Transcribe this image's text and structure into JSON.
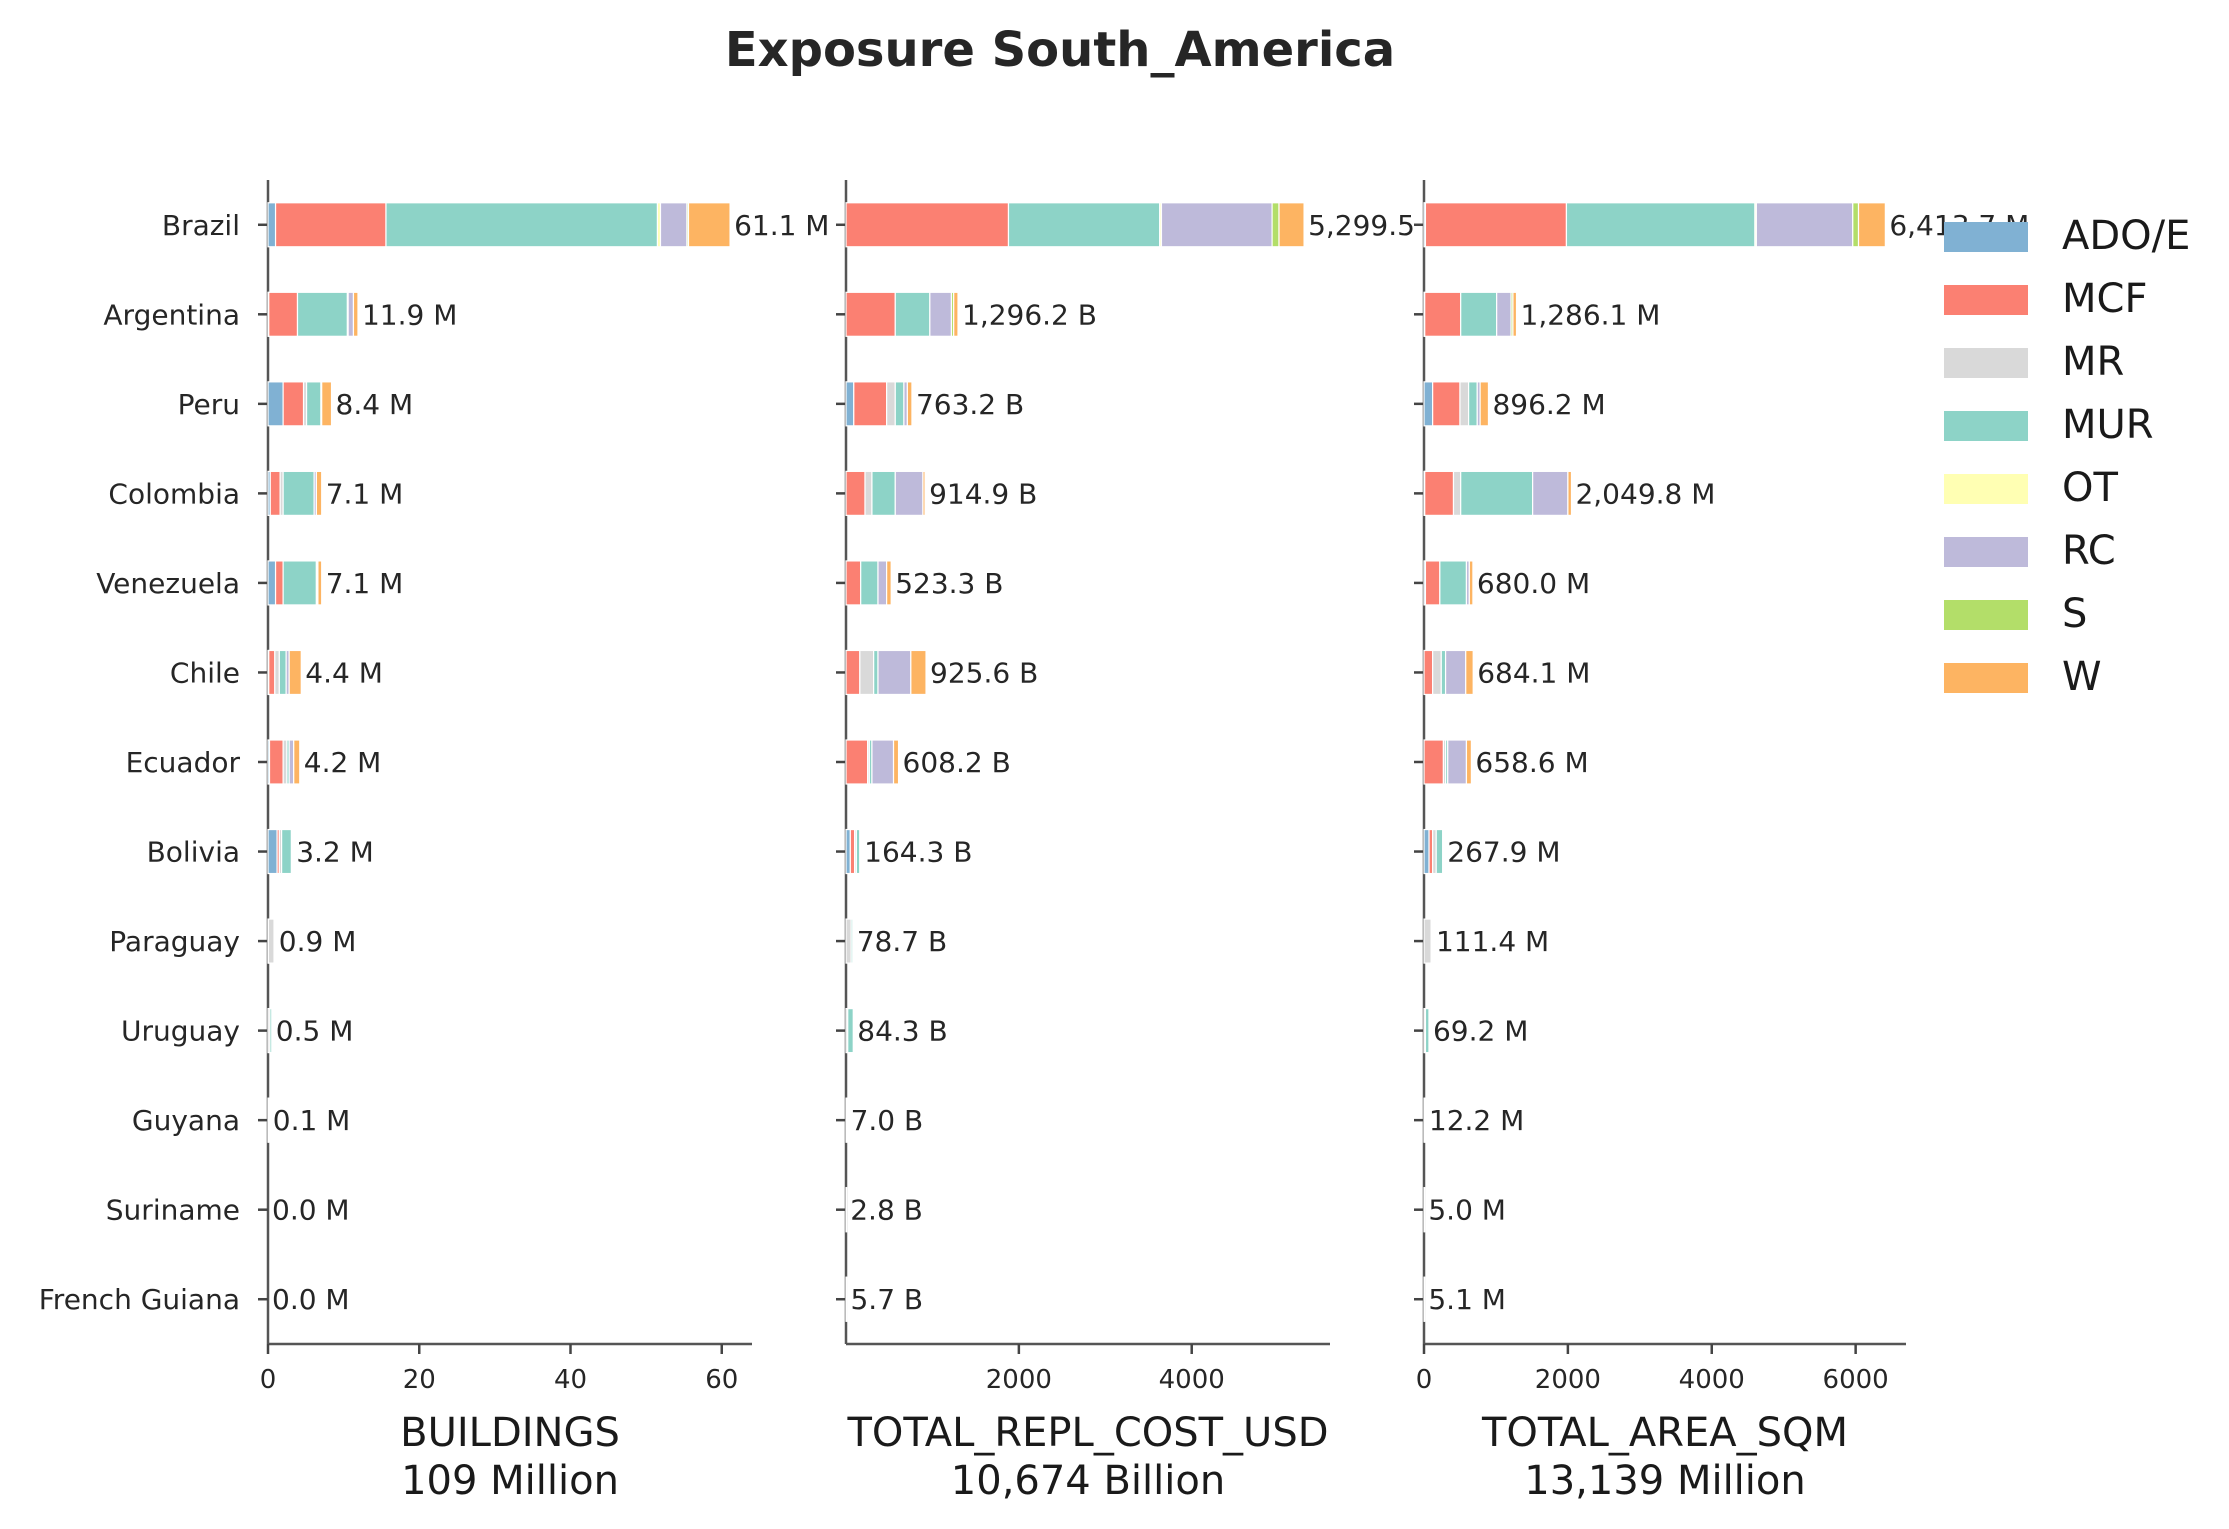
{
  "chart_data": {
    "type": "bar",
    "orientation": "horizontal",
    "stacked": true,
    "title": "Exposure South_America",
    "categories": [
      "Brazil",
      "Argentina",
      "Peru",
      "Colombia",
      "Venezuela",
      "Chile",
      "Ecuador",
      "Bolivia",
      "Paraguay",
      "Uruguay",
      "Guyana",
      "Suriname",
      "French Guiana"
    ],
    "legend": {
      "placement": "right",
      "entries": [
        {
          "name": "ADO/E",
          "color": "#80b1d3"
        },
        {
          "name": "MCF",
          "color": "#fb8072"
        },
        {
          "name": "MR",
          "color": "#d9d9d9"
        },
        {
          "name": "MUR",
          "color": "#8dd3c7"
        },
        {
          "name": "OT",
          "color": "#ffffb3"
        },
        {
          "name": "RC",
          "color": "#bebada"
        },
        {
          "name": "S",
          "color": "#b3de69"
        },
        {
          "name": "W",
          "color": "#fdb462"
        }
      ]
    },
    "grid": false,
    "panels": [
      {
        "xlabel": "BUILDINGS",
        "xsublabel": "109 Million",
        "xlim": [
          0,
          64
        ],
        "xticks": [
          0,
          20,
          40,
          60
        ],
        "totals_text": [
          "61.1 M",
          "11.9 M",
          "8.4 M",
          "7.1 M",
          "7.1 M",
          "4.4 M",
          "4.2 M",
          "3.2 M",
          "0.9 M",
          "0.5 M",
          "0.1 M",
          "0.0 M",
          "0.0 M"
        ],
        "series": [
          {
            "name": "ADO/E",
            "values": [
              1.0,
              0.1,
              2.0,
              0.3,
              1.0,
              0.1,
              0.2,
              1.2,
              0.05,
              0.0,
              0.0,
              0.0,
              0.0
            ]
          },
          {
            "name": "MCF",
            "values": [
              14.6,
              3.8,
              2.7,
              1.3,
              1.0,
              0.8,
              1.8,
              0.3,
              0.0,
              0.0,
              0.0,
              0.0,
              0.0
            ]
          },
          {
            "name": "MR",
            "values": [
              0.0,
              0.0,
              0.4,
              0.4,
              0.0,
              0.6,
              0.5,
              0.3,
              0.75,
              0.25,
              0.05,
              0.0,
              0.0
            ]
          },
          {
            "name": "MUR",
            "values": [
              35.9,
              6.6,
              1.9,
              4.1,
              4.4,
              0.9,
              0.3,
              1.3,
              0.1,
              0.25,
              0.05,
              0.0,
              0.0
            ]
          },
          {
            "name": "OT",
            "values": [
              0.4,
              0.1,
              0.0,
              0.0,
              0.1,
              0.0,
              0.0,
              0.0,
              0.0,
              0.0,
              0.0,
              0.0,
              0.0
            ]
          },
          {
            "name": "RC",
            "values": [
              3.5,
              0.7,
              0.1,
              0.3,
              0.1,
              0.4,
              0.6,
              0.1,
              0.0,
              0.0,
              0.0,
              0.0,
              0.0
            ]
          },
          {
            "name": "S",
            "values": [
              0.2,
              0.0,
              0.0,
              0.0,
              0.0,
              0.0,
              0.0,
              0.0,
              0.0,
              0.0,
              0.0,
              0.0,
              0.0
            ]
          },
          {
            "name": "W",
            "values": [
              5.5,
              0.6,
              1.3,
              0.7,
              0.5,
              1.6,
              0.8,
              0.0,
              0.0,
              0.0,
              0.0,
              0.0,
              0.0
            ]
          }
        ]
      },
      {
        "xlabel": "TOTAL_REPL_COST_USD",
        "xsublabel": "10,674 Billion",
        "xlim": [
          0,
          5600
        ],
        "xticks": [
          2000,
          4000
        ],
        "totals_text": [
          "5,299.5",
          "1,296.2 B",
          "763.2 B",
          "914.9 B",
          "523.3 B",
          "925.6 B",
          "608.2 B",
          "164.3 B",
          "78.7 B",
          "84.3 B",
          "7.0 B",
          "2.8 B",
          "5.7 B"
        ],
        "series": [
          {
            "name": "ADO/E",
            "values": [
              0,
              0,
              90,
              0,
              0,
              0,
              0,
              50,
              0,
              0,
              0,
              0,
              0
            ]
          },
          {
            "name": "MCF",
            "values": [
              1880,
              570,
              380,
              220,
              170,
              160,
              250,
              50,
              0,
              0,
              0,
              0,
              0
            ]
          },
          {
            "name": "MR",
            "values": [
              0,
              0,
              100,
              80,
              0,
              160,
              20,
              20,
              60,
              20,
              5,
              2,
              4
            ]
          },
          {
            "name": "MUR",
            "values": [
              1750,
              400,
              100,
              270,
              200,
              50,
              30,
              40,
              18,
              64,
              2,
              0.8,
              1.7
            ]
          },
          {
            "name": "OT",
            "values": [
              20,
              0,
              0,
              0,
              0,
              0,
              0,
              0,
              0,
              0,
              0,
              0,
              0
            ]
          },
          {
            "name": "RC",
            "values": [
              1280,
              250,
              40,
              320,
              100,
              380,
              250,
              4,
              0,
              0,
              0,
              0,
              0
            ]
          },
          {
            "name": "S",
            "values": [
              80,
              26,
              0,
              0,
              0,
              0,
              0,
              0,
              0,
              0,
              0,
              0,
              0
            ]
          },
          {
            "name": "W",
            "values": [
              290,
              50,
              53,
              25,
              53,
              176,
              58,
              0,
              0,
              0,
              0,
              0,
              0
            ]
          }
        ]
      },
      {
        "xlabel": "TOTAL_AREA_SQM",
        "xsublabel": "13,139 Million",
        "xlim": [
          0,
          6700
        ],
        "xticks": [
          0,
          2000,
          4000,
          6000
        ],
        "totals_text": [
          "6,413.7 M",
          "1,286.1 M",
          "896.2 M",
          "2,049.8 M",
          "680.0 M",
          "684.1 M",
          "658.6 M",
          "267.9 M",
          "111.4 M",
          "69.2 M",
          "12.2 M",
          "5.0 M",
          "5.1 M"
        ],
        "series": [
          {
            "name": "ADO/E",
            "values": [
              20,
              10,
              120,
              10,
              20,
              0,
              0,
              70,
              0,
              0,
              0,
              0,
              0
            ]
          },
          {
            "name": "MCF",
            "values": [
              1960,
              500,
              380,
              400,
              200,
              120,
              270,
              50,
              0,
              0,
              0,
              0,
              0
            ]
          },
          {
            "name": "MR",
            "values": [
              0,
              0,
              120,
              100,
              0,
              120,
              30,
              50,
              100,
              20,
              10,
              4,
              4
            ]
          },
          {
            "name": "MUR",
            "values": [
              2620,
              500,
              120,
              1000,
              370,
              60,
              30,
              90,
              11,
              49,
              2.2,
              1,
              1.1
            ]
          },
          {
            "name": "OT",
            "values": [
              20,
              0,
              0,
              0,
              0,
              0,
              0,
              0,
              0,
              0,
              0,
              0,
              0
            ]
          },
          {
            "name": "RC",
            "values": [
              1340,
              200,
              40,
              490,
              40,
              280,
              260,
              8,
              0,
              0,
              0,
              0,
              0
            ]
          },
          {
            "name": "S",
            "values": [
              80,
              26,
              0,
              0,
              0,
              0,
              0,
              0,
              0,
              0,
              0,
              0,
              0
            ]
          },
          {
            "name": "W",
            "values": [
              373,
              50,
              116,
              50,
              50,
              104,
              69,
              0,
              0,
              0,
              0,
              0,
              0
            ]
          }
        ]
      }
    ]
  }
}
